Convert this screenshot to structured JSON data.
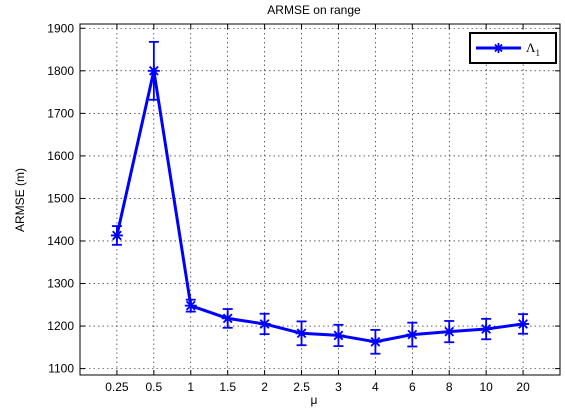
{
  "chart_data": {
    "type": "line",
    "title": "ARMSE on range",
    "xlabel": "μ",
    "ylabel": "ARMSE (m)",
    "categories": [
      "0.25",
      "0.5",
      "1",
      "1.5",
      "2",
      "2.5",
      "3",
      "4",
      "6",
      "8",
      "10",
      "20"
    ],
    "series": [
      {
        "name": "Λ",
        "name_subscript": "1",
        "color": "#0000ff",
        "marker": "star",
        "values": [
          1413,
          1800,
          1248,
          1218,
          1205,
          1183,
          1178,
          1163,
          1180,
          1187,
          1193,
          1205
        ],
        "errors": [
          22,
          68,
          14,
          22,
          24,
          28,
          25,
          28,
          28,
          25,
          24,
          23
        ]
      }
    ],
    "ylim": [
      1085,
      1910
    ],
    "yticks": [
      "1100",
      "1200",
      "1300",
      "1400",
      "1500",
      "1600",
      "1700",
      "1800",
      "1900"
    ],
    "grid": true,
    "legend_position": "top-right"
  }
}
